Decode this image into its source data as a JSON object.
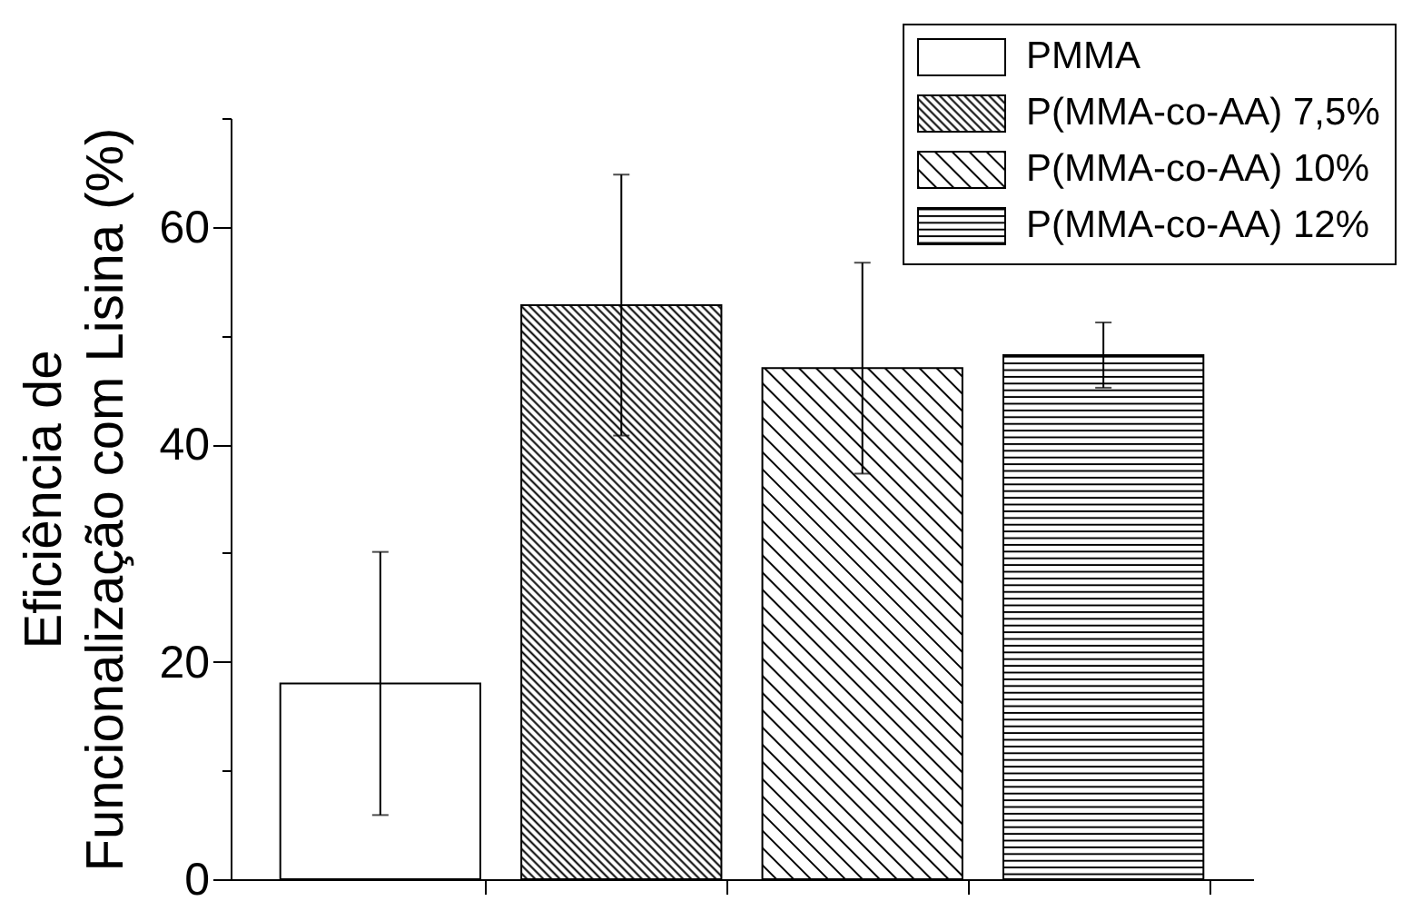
{
  "chart_data": {
    "type": "bar",
    "ylabel": "Eficiência de\nFuncionalização com Lisina (%)",
    "categories": [
      null,
      null,
      null,
      null
    ],
    "series": [
      {
        "name": "PMMA",
        "color": "#ffffff",
        "values": [
          18.0,
          null,
          null,
          null
        ],
        "errors": [
          12.1,
          null,
          null,
          null
        ]
      },
      {
        "name": "P(MMA-co-AA) 7,5%",
        "color": "#000000",
        "values": [
          null,
          52.8,
          null,
          null
        ],
        "errors": [
          null,
          12.0,
          null,
          null
        ]
      },
      {
        "name": "P(MMA-co-AA) 10%",
        "color": "#000000",
        "values": [
          null,
          null,
          47.0,
          null
        ],
        "errors": [
          null,
          null,
          9.7,
          null
        ]
      },
      {
        "name": "P(MMA-co-AA) 12%",
        "color": "#000000",
        "values": [
          null,
          null,
          null,
          48.2
        ],
        "errors": [
          null,
          null,
          null,
          3.0
        ]
      }
    ],
    "ylim": [
      0,
      70
    ],
    "yticks": [
      0,
      {
        "value": 10,
        "label": null
      },
      20,
      {
        "value": 30,
        "label": null
      },
      40,
      {
        "value": 50,
        "label": null
      },
      60,
      {
        "value": 70,
        "label": null
      }
    ],
    "grid": false,
    "legend": "top right"
  }
}
